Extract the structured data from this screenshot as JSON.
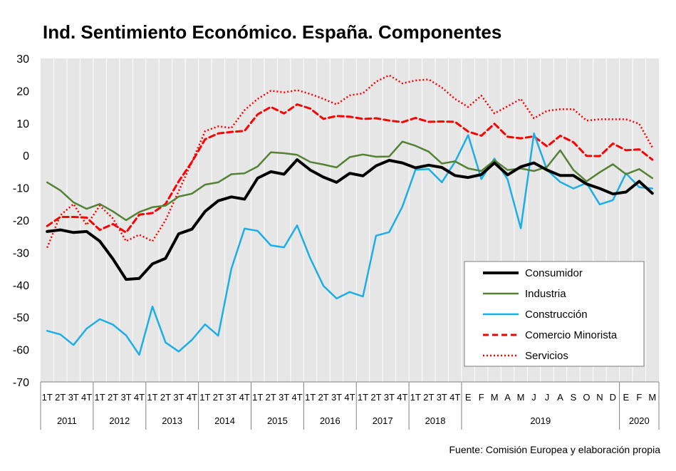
{
  "title": "Ind. Sentimiento Económico. España. Componentes",
  "source": "Fuente: Comisión Europea y elaboración propia",
  "chart_data": {
    "type": "line",
    "title": "Ind. Sentimiento Económico. España. Componentes",
    "ylim": [
      -70,
      30
    ],
    "yticks": [
      30,
      20,
      10,
      0,
      -10,
      -20,
      -30,
      -40,
      -50,
      -60,
      -70
    ],
    "grid": "vertical",
    "legend_position": "bottom-right",
    "x_labels": [
      "1T",
      "2T",
      "3T",
      "4T",
      "1T",
      "2T",
      "3T",
      "4T",
      "1T",
      "2T",
      "3T",
      "4T",
      "1T",
      "2T",
      "3T",
      "4T",
      "1T",
      "2T",
      "3T",
      "4T",
      "1T",
      "2T",
      "3T",
      "4T",
      "1T",
      "2T",
      "3T",
      "4T",
      "1T",
      "2T",
      "3T",
      "4T",
      "E",
      "F",
      "M",
      "A",
      "M",
      "J",
      "J",
      "A",
      "S",
      "O",
      "N",
      "D",
      "E",
      "F",
      "M"
    ],
    "year_groups": [
      {
        "label": "2011",
        "count": 4
      },
      {
        "label": "2012",
        "count": 4
      },
      {
        "label": "2013",
        "count": 4
      },
      {
        "label": "2014",
        "count": 4
      },
      {
        "label": "2015",
        "count": 4
      },
      {
        "label": "2016",
        "count": 4
      },
      {
        "label": "2017",
        "count": 4
      },
      {
        "label": "2018",
        "count": 4
      },
      {
        "label": "2019",
        "count": 12
      },
      {
        "label": "2020",
        "count": 3
      }
    ],
    "series": [
      {
        "name": "Consumidor",
        "color": "#000000",
        "style": "solid",
        "width": 4,
        "values": [
          -23.5,
          -23,
          -23.8,
          -23.5,
          -26.5,
          -32,
          -38.3,
          -38,
          -33.5,
          -31.8,
          -24.2,
          -22.8,
          -17.3,
          -14,
          -12.8,
          -13.5,
          -7,
          -5,
          -5.8,
          -1.3,
          -4.5,
          -6.7,
          -8.3,
          -5.5,
          -6.3,
          -3.2,
          -1.5,
          -2.3,
          -3.8,
          -3,
          -3.7,
          -6.2,
          -6.8,
          -5.9,
          -2.3,
          -6,
          -3.5,
          -2.3,
          -4.5,
          -6.2,
          -6.2,
          -8.8,
          -10.2,
          -11.9,
          -11.3,
          -8,
          -11.7
        ]
      },
      {
        "name": "Industria",
        "color": "#548235",
        "style": "solid",
        "width": 2.5,
        "values": [
          -8.3,
          -10.8,
          -14.5,
          -16.5,
          -15,
          -17.3,
          -20,
          -17.5,
          -16,
          -15.5,
          -12.7,
          -11.8,
          -9,
          -8.3,
          -5.8,
          -5.5,
          -3.4,
          1,
          0.7,
          0.2,
          -2,
          -2.8,
          -3.7,
          -0.5,
          0.3,
          -0.4,
          -0.3,
          4.3,
          3,
          1.2,
          -2.5,
          -1.8,
          -4,
          -4.8,
          -1.5,
          -4.5,
          -4,
          -4.8,
          -3.5,
          1.6,
          -4.5,
          -8,
          -5.2,
          -2.7,
          -5.8,
          -4.2,
          -7
        ]
      },
      {
        "name": "Construcción",
        "color": "#1CAEE6",
        "style": "solid",
        "width": 2.5,
        "values": [
          -54.2,
          -55.3,
          -58.6,
          -53.5,
          -50.6,
          -52.3,
          -55.6,
          -61.6,
          -46.7,
          -57.8,
          -60.6,
          -57,
          -52.2,
          -55.7,
          -35,
          -22.6,
          -23.3,
          -27.8,
          -28.4,
          -21.6,
          -31.8,
          -40.3,
          -44.2,
          -42.2,
          -43.6,
          -24.8,
          -23.7,
          -15.8,
          -4.4,
          -4.2,
          -8.3,
          -2,
          6.3,
          -7.3,
          -1,
          -7.4,
          -22.5,
          6.8,
          -4.5,
          -8.2,
          -10.2,
          -8.5,
          -15.1,
          -13.8,
          -5.5,
          -9.8,
          -10.2
        ]
      },
      {
        "name": "Comercio Minorista",
        "color": "#FF0000",
        "style": "dashed",
        "width": 3,
        "values": [
          -21.8,
          -19,
          -19,
          -19.2,
          -23,
          -21.2,
          -23.8,
          -18.3,
          -17.8,
          -15,
          -8,
          -2,
          5,
          6.8,
          7.3,
          7.6,
          12.7,
          15,
          13,
          15.8,
          14.5,
          11.3,
          12.2,
          12,
          11.3,
          11.5,
          10.8,
          10.3,
          11.6,
          10.4,
          10.5,
          10.4,
          7.4,
          6.1,
          9.8,
          5.8,
          5.3,
          5.9,
          2.8,
          6.1,
          4.1,
          -0.1,
          -0.2,
          3.7,
          1.6,
          1.9,
          -1.3
        ]
      },
      {
        "name": "Servicios",
        "color": "#FF0000",
        "style": "dotted",
        "width": 2.5,
        "values": [
          -28.5,
          -18.5,
          -15,
          -21.5,
          -15.5,
          -19.5,
          -26.5,
          -24.5,
          -26.5,
          -20,
          -11,
          -2,
          7.5,
          9,
          8.5,
          14,
          17.5,
          20,
          19.5,
          20.2,
          19,
          17.5,
          15.8,
          18.6,
          19.2,
          22.8,
          24.8,
          22.3,
          23.2,
          23.5,
          21,
          17.5,
          15,
          18.5,
          13,
          15.2,
          17.5,
          11.5,
          13.8,
          14.3,
          14.3,
          10.8,
          11.2,
          11.2,
          11.2,
          9.8,
          2.5
        ]
      }
    ]
  }
}
